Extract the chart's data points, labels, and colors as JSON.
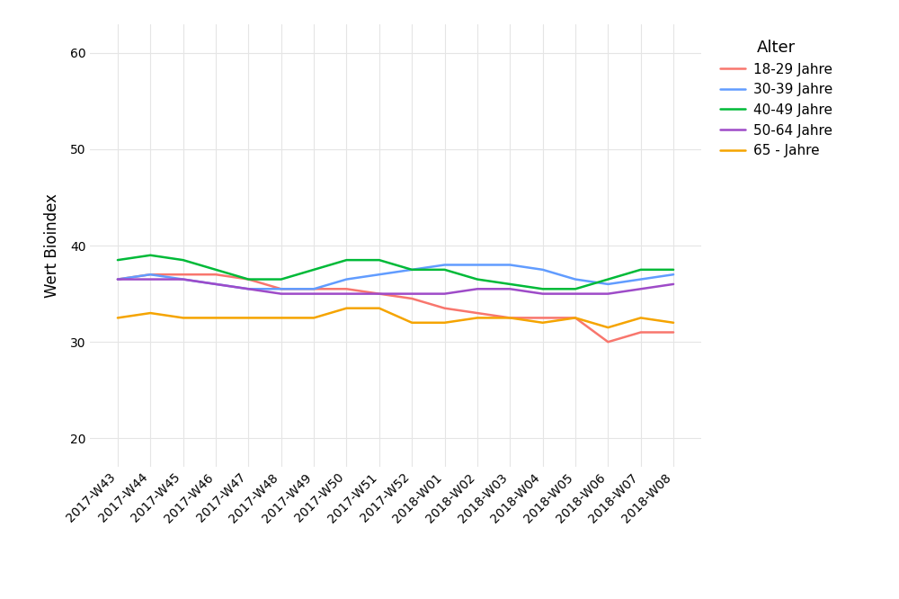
{
  "x_labels": [
    "2017-W43",
    "2017-W44",
    "2017-W45",
    "2017-W46",
    "2017-W47",
    "2017-W48",
    "2017-W49",
    "2017-W50",
    "2017-W51",
    "2017-W52",
    "2018-W01",
    "2018-W02",
    "2018-W03",
    "2018-W04",
    "2018-W05",
    "2018-W06",
    "2018-W07",
    "2018-W08"
  ],
  "series": [
    {
      "label": "18-29 Jahre",
      "color": "#F8766D",
      "values": [
        36.5,
        37.0,
        37.0,
        37.0,
        36.5,
        35.5,
        35.5,
        35.5,
        35.0,
        34.5,
        33.5,
        33.0,
        32.5,
        32.5,
        32.5,
        30.0,
        31.0,
        31.0
      ]
    },
    {
      "label": "30-39 Jahre",
      "color": "#619CFF",
      "values": [
        36.5,
        37.0,
        36.5,
        36.0,
        35.5,
        35.5,
        35.5,
        36.5,
        37.0,
        37.5,
        38.0,
        38.0,
        38.0,
        37.5,
        36.5,
        36.0,
        36.5,
        37.0
      ]
    },
    {
      "label": "40-49 Jahre",
      "color": "#00BA38",
      "values": [
        38.5,
        39.0,
        38.5,
        37.5,
        36.5,
        36.5,
        37.5,
        38.5,
        38.5,
        37.5,
        37.5,
        36.5,
        36.0,
        35.5,
        35.5,
        36.5,
        37.5,
        37.5
      ]
    },
    {
      "label": "50-64 Jahre",
      "color": "#9E4BC8",
      "values": [
        36.5,
        36.5,
        36.5,
        36.0,
        35.5,
        35.0,
        35.0,
        35.0,
        35.0,
        35.0,
        35.0,
        35.5,
        35.5,
        35.0,
        35.0,
        35.0,
        35.5,
        36.0
      ]
    },
    {
      "label": "65 - Jahre",
      "color": "#F5A400",
      "values": [
        32.5,
        33.0,
        32.5,
        32.5,
        32.5,
        32.5,
        32.5,
        33.5,
        33.5,
        32.0,
        32.0,
        32.5,
        32.5,
        32.0,
        32.5,
        31.5,
        32.5,
        32.0
      ]
    }
  ],
  "ylabel": "Wert Bioindex",
  "legend_title": "Alter",
  "ylim": [
    17,
    63
  ],
  "yticks": [
    20,
    30,
    40,
    50,
    60
  ],
  "bg_color": "#ffffff",
  "panel_bg": "#ffffff",
  "grid_color": "#e5e5e5",
  "grid_linewidth": 0.8,
  "line_width": 1.8,
  "tick_fontsize": 10,
  "label_fontsize": 12,
  "legend_fontsize": 11,
  "legend_title_fontsize": 13
}
